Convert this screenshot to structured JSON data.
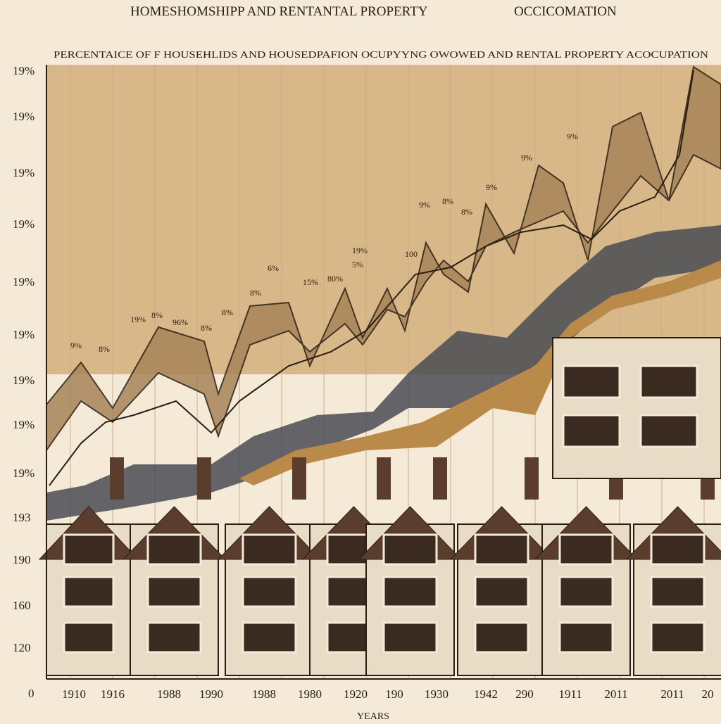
{
  "header": {
    "title": "HOMESHOMSHIPP AND  RENTANTAL PROPERTY",
    "title_right": "OCCICOMATION",
    "subtitle": "PERCENTAICE OF F HOUSEHLIDS AND HOUSEDPAFION OCUPYYNG OWOWED AND RENTAL PROPERTY ACOCUPATION"
  },
  "y_axis": {
    "labels": [
      "19%",
      "19%",
      "19%",
      "19%",
      "19%",
      "19%",
      "19%",
      "19%",
      "19%",
      "193",
      "190",
      "160",
      "120",
      "0"
    ]
  },
  "x_axis": {
    "labels": [
      "1910",
      "1916",
      "1988",
      "1990",
      "1988",
      "1980",
      "1920",
      "190",
      "1930",
      "1942",
      "290",
      "1911",
      "2011",
      "2011",
      "20"
    ],
    "title": "YEARS"
  },
  "annotations": [
    "9%",
    "8%",
    "19%",
    "8%",
    "96%",
    "8%",
    "8%",
    "8%",
    "6%",
    "15%",
    "80%",
    "19%",
    "5%",
    "100",
    "9%",
    "8%",
    "8%",
    "9%",
    "9%",
    "9%"
  ]
}
